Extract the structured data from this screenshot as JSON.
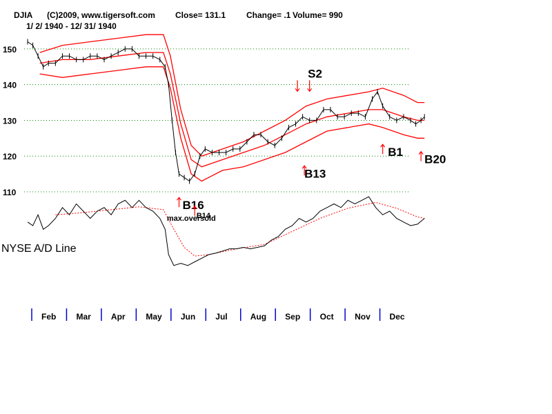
{
  "header": {
    "symbol": "DJIA",
    "copyright": "(C)2009, www.tigersoft.com",
    "close_text": "Close=  131.1",
    "change_text": "Change= .1",
    "volume_text": "Volume= 990",
    "date_range": "1/ 2/ 1940 - 12/ 31/ 1940"
  },
  "colors": {
    "price": "#000000",
    "bands": "#ff0000",
    "grid": "#008000",
    "month_tick": "#0000cc",
    "signal_arrow": "#ff0000",
    "ad_line": "#000000",
    "ad_ma": "#ff0000"
  },
  "chart_data": {
    "type": "line",
    "title": "DJIA",
    "y_ticks": [
      150,
      140,
      130,
      120,
      110
    ],
    "ylim": [
      110,
      155
    ],
    "grid": true,
    "months": [
      "Feb",
      "Mar",
      "Apr",
      "May",
      "Jun",
      "Jul",
      "Aug",
      "Sep",
      "Oct",
      "Nov",
      "Dec"
    ],
    "x_range": [
      1,
      12
    ],
    "price": [
      [
        1.0,
        152
      ],
      [
        1.15,
        151
      ],
      [
        1.3,
        148
      ],
      [
        1.45,
        145
      ],
      [
        1.6,
        146
      ],
      [
        1.8,
        146
      ],
      [
        2.0,
        148
      ],
      [
        2.2,
        148
      ],
      [
        2.4,
        147
      ],
      [
        2.6,
        147
      ],
      [
        2.8,
        148
      ],
      [
        3.0,
        148
      ],
      [
        3.2,
        147
      ],
      [
        3.4,
        148
      ],
      [
        3.6,
        149
      ],
      [
        3.8,
        150
      ],
      [
        4.0,
        150
      ],
      [
        4.2,
        148
      ],
      [
        4.4,
        148
      ],
      [
        4.6,
        148
      ],
      [
        4.8,
        147
      ],
      [
        4.95,
        145
      ],
      [
        5.05,
        140
      ],
      [
        5.15,
        130
      ],
      [
        5.25,
        121
      ],
      [
        5.35,
        115
      ],
      [
        5.5,
        114
      ],
      [
        5.65,
        113
      ],
      [
        5.8,
        115
      ],
      [
        5.95,
        120
      ],
      [
        6.1,
        122
      ],
      [
        6.3,
        121
      ],
      [
        6.5,
        121
      ],
      [
        6.7,
        121
      ],
      [
        6.9,
        122
      ],
      [
        7.1,
        122
      ],
      [
        7.3,
        124
      ],
      [
        7.5,
        126
      ],
      [
        7.7,
        126
      ],
      [
        7.9,
        124
      ],
      [
        8.1,
        123
      ],
      [
        8.3,
        125
      ],
      [
        8.5,
        128
      ],
      [
        8.7,
        129
      ],
      [
        8.9,
        131
      ],
      [
        9.1,
        130
      ],
      [
        9.3,
        130
      ],
      [
        9.5,
        133
      ],
      [
        9.7,
        133
      ],
      [
        9.9,
        131
      ],
      [
        10.1,
        131
      ],
      [
        10.3,
        132
      ],
      [
        10.5,
        132
      ],
      [
        10.7,
        131
      ],
      [
        10.9,
        136
      ],
      [
        11.05,
        138
      ],
      [
        11.2,
        134
      ],
      [
        11.4,
        131
      ],
      [
        11.6,
        130
      ],
      [
        11.8,
        131
      ],
      [
        12.0,
        130
      ],
      [
        12.15,
        129
      ],
      [
        12.3,
        130
      ],
      [
        12.4,
        131
      ]
    ],
    "upper_band": [
      [
        1.35,
        149
      ],
      [
        2.0,
        151
      ],
      [
        2.8,
        152
      ],
      [
        3.6,
        153
      ],
      [
        4.4,
        154
      ],
      [
        4.9,
        154
      ],
      [
        5.1,
        148
      ],
      [
        5.4,
        133
      ],
      [
        5.7,
        123
      ],
      [
        6.0,
        120
      ],
      [
        6.6,
        122
      ],
      [
        7.2,
        124
      ],
      [
        7.8,
        127
      ],
      [
        8.4,
        130
      ],
      [
        9.0,
        134
      ],
      [
        9.6,
        136
      ],
      [
        10.2,
        137
      ],
      [
        10.8,
        138
      ],
      [
        11.2,
        139
      ],
      [
        11.8,
        137
      ],
      [
        12.2,
        135
      ],
      [
        12.4,
        135
      ]
    ],
    "lower_band": [
      [
        1.35,
        143
      ],
      [
        2.0,
        142
      ],
      [
        2.8,
        143
      ],
      [
        3.6,
        144
      ],
      [
        4.4,
        145
      ],
      [
        4.9,
        145
      ],
      [
        5.1,
        139
      ],
      [
        5.4,
        125
      ],
      [
        5.7,
        115
      ],
      [
        6.0,
        113
      ],
      [
        6.6,
        116
      ],
      [
        7.2,
        117
      ],
      [
        7.8,
        119
      ],
      [
        8.4,
        121
      ],
      [
        9.0,
        124
      ],
      [
        9.6,
        127
      ],
      [
        10.2,
        128
      ],
      [
        10.8,
        129
      ],
      [
        11.2,
        128
      ],
      [
        11.8,
        126
      ],
      [
        12.2,
        125
      ],
      [
        12.4,
        125
      ]
    ],
    "middle_band": [
      [
        1.35,
        146
      ],
      [
        2.0,
        147
      ],
      [
        2.8,
        147
      ],
      [
        3.6,
        148
      ],
      [
        4.4,
        149
      ],
      [
        4.9,
        149
      ],
      [
        5.1,
        143
      ],
      [
        5.4,
        129
      ],
      [
        5.7,
        119
      ],
      [
        6.0,
        117
      ],
      [
        6.6,
        119
      ],
      [
        7.2,
        121
      ],
      [
        7.8,
        123
      ],
      [
        8.4,
        126
      ],
      [
        9.0,
        129
      ],
      [
        9.6,
        131
      ],
      [
        10.2,
        132
      ],
      [
        10.8,
        133
      ],
      [
        11.2,
        133
      ],
      [
        11.8,
        131
      ],
      [
        12.2,
        130
      ],
      [
        12.4,
        130
      ]
    ],
    "ad_line": [
      [
        1.0,
        0.35
      ],
      [
        1.15,
        0.4
      ],
      [
        1.3,
        0.25
      ],
      [
        1.45,
        0.45
      ],
      [
        1.6,
        0.4
      ],
      [
        1.8,
        0.3
      ],
      [
        2.0,
        0.15
      ],
      [
        2.2,
        0.25
      ],
      [
        2.4,
        0.1
      ],
      [
        2.6,
        0.2
      ],
      [
        2.8,
        0.3
      ],
      [
        3.0,
        0.2
      ],
      [
        3.2,
        0.15
      ],
      [
        3.4,
        0.25
      ],
      [
        3.6,
        0.1
      ],
      [
        3.8,
        0.05
      ],
      [
        4.0,
        0.15
      ],
      [
        4.2,
        0.05
      ],
      [
        4.4,
        0.15
      ],
      [
        4.6,
        0.2
      ],
      [
        4.8,
        0.3
      ],
      [
        4.95,
        0.45
      ],
      [
        5.05,
        0.8
      ],
      [
        5.2,
        0.95
      ],
      [
        5.4,
        0.92
      ],
      [
        5.6,
        0.95
      ],
      [
        5.8,
        0.9
      ],
      [
        6.0,
        0.85
      ],
      [
        6.2,
        0.8
      ],
      [
        6.4,
        0.78
      ],
      [
        6.6,
        0.75
      ],
      [
        6.8,
        0.72
      ],
      [
        7.0,
        0.72
      ],
      [
        7.2,
        0.7
      ],
      [
        7.4,
        0.72
      ],
      [
        7.6,
        0.7
      ],
      [
        7.8,
        0.68
      ],
      [
        8.0,
        0.6
      ],
      [
        8.2,
        0.55
      ],
      [
        8.4,
        0.45
      ],
      [
        8.6,
        0.4
      ],
      [
        8.8,
        0.3
      ],
      [
        9.0,
        0.35
      ],
      [
        9.2,
        0.3
      ],
      [
        9.4,
        0.2
      ],
      [
        9.6,
        0.15
      ],
      [
        9.8,
        0.1
      ],
      [
        10.0,
        0.15
      ],
      [
        10.2,
        0.05
      ],
      [
        10.4,
        0.1
      ],
      [
        10.6,
        0.05
      ],
      [
        10.8,
        0.0
      ],
      [
        11.0,
        0.15
      ],
      [
        11.2,
        0.25
      ],
      [
        11.4,
        0.2
      ],
      [
        11.6,
        0.3
      ],
      [
        11.8,
        0.35
      ],
      [
        12.0,
        0.4
      ],
      [
        12.2,
        0.38
      ],
      [
        12.4,
        0.3
      ]
    ],
    "ad_ma": [
      [
        1.8,
        0.25
      ],
      [
        2.6,
        0.22
      ],
      [
        3.4,
        0.18
      ],
      [
        4.2,
        0.14
      ],
      [
        4.9,
        0.18
      ],
      [
        5.2,
        0.45
      ],
      [
        5.5,
        0.7
      ],
      [
        5.8,
        0.82
      ],
      [
        6.2,
        0.8
      ],
      [
        7.0,
        0.72
      ],
      [
        7.8,
        0.66
      ],
      [
        8.6,
        0.48
      ],
      [
        9.4,
        0.3
      ],
      [
        10.2,
        0.16
      ],
      [
        11.0,
        0.08
      ],
      [
        11.6,
        0.16
      ],
      [
        12.2,
        0.28
      ],
      [
        12.4,
        0.3
      ]
    ],
    "ad_label": "NYSE A/D Line",
    "annotations": [
      {
        "label": "S2",
        "size": "big",
        "x": 9.05,
        "y": 142,
        "arrow": "down",
        "arrow_x": [
          8.75,
          9.1
        ]
      },
      {
        "label": "B16",
        "size": "big",
        "x": 5.45,
        "y": 104,
        "arrow": "up",
        "arrow_x": [
          5.35
        ]
      },
      {
        "label": "B13",
        "size": "big",
        "x": 8.95,
        "y": 114,
        "arrow": "up",
        "arrow_x": [
          8.95
        ]
      },
      {
        "label": "B1",
        "size": "big",
        "x": 11.35,
        "y": 120,
        "arrow": "up",
        "arrow_x": [
          11.2
        ]
      },
      {
        "label": "B20",
        "size": "big",
        "x": 12.4,
        "y": 118,
        "arrow": "up",
        "arrow_x": [
          12.3
        ]
      },
      {
        "label": "B14",
        "size": "small",
        "x": 5.85,
        "y": 101,
        "arrow": "up",
        "arrow_x": [
          5.8
        ]
      },
      {
        "label": "max.oversold",
        "size": "small",
        "x": 5.0,
        "y": 100,
        "arrow": "none",
        "arrow_x": []
      }
    ]
  }
}
